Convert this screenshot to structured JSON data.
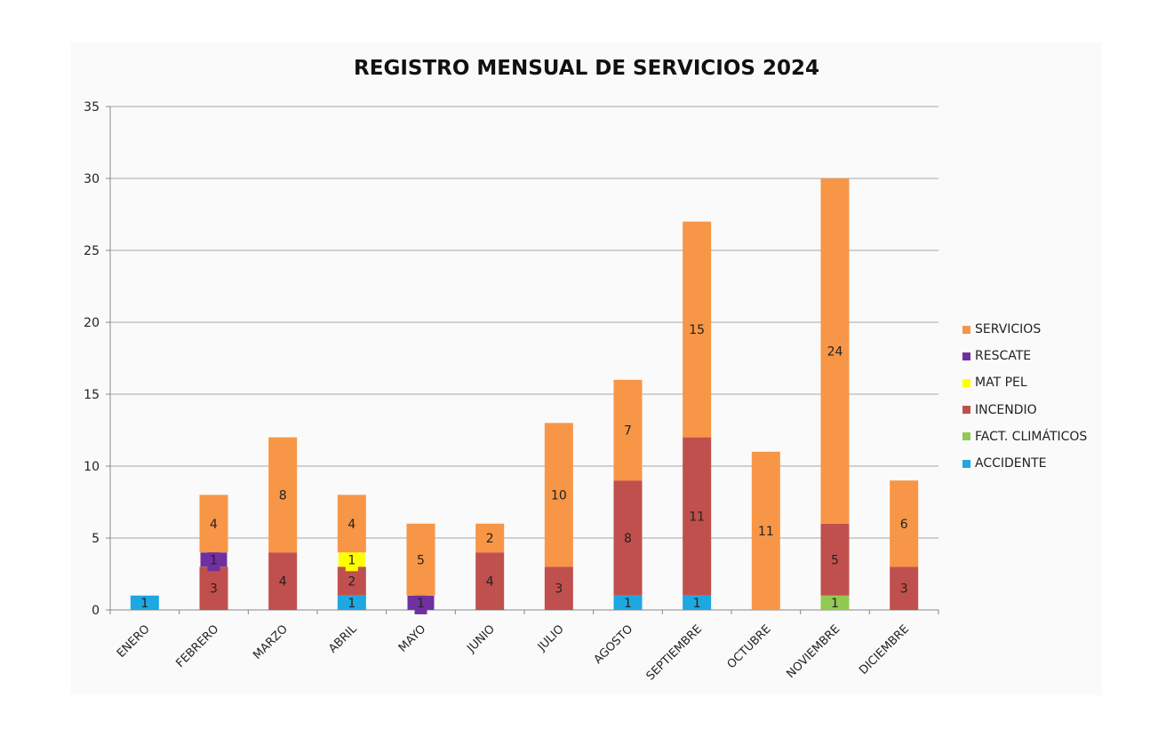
{
  "chart_data": {
    "type": "bar",
    "stacked": true,
    "title": "REGISTRO MENSUAL DE SERVICIOS 2024",
    "xlabel": "",
    "ylabel": "",
    "ylim": [
      0,
      35
    ],
    "yticks": [
      "0",
      "5",
      "10",
      "15",
      "20",
      "25",
      "30",
      "35"
    ],
    "grid": true,
    "legend_position": "right",
    "categories": [
      "ENERO",
      "FEBRERO",
      "MARZO",
      "ABRIL",
      "MAYO",
      "JUNIO",
      "JULIO",
      "AGOSTO",
      "SEPTIEMBRE",
      "OCTUBRE",
      "NOVIEMBRE",
      "DICIEMBRE"
    ],
    "series": [
      {
        "name": "ACCIDENTE",
        "color": "#1ea7e1",
        "values": [
          1,
          0,
          0,
          1,
          0,
          0,
          0,
          1,
          1,
          0,
          0,
          0
        ]
      },
      {
        "name": "FACT. CLIMÁTICOS",
        "color": "#92c950",
        "values": [
          0,
          0,
          0,
          0,
          0,
          0,
          0,
          0,
          0,
          0,
          1,
          0
        ]
      },
      {
        "name": "INCENDIO",
        "color": "#c0504d",
        "values": [
          0,
          3,
          4,
          2,
          0,
          4,
          3,
          8,
          11,
          0,
          5,
          3
        ]
      },
      {
        "name": "MAT PEL",
        "color": "#ffff00",
        "values": [
          0,
          0,
          0,
          1,
          0,
          0,
          0,
          0,
          0,
          0,
          0,
          0
        ]
      },
      {
        "name": "RESCATE",
        "color": "#7030a0",
        "values": [
          0,
          1,
          0,
          0,
          1,
          0,
          0,
          0,
          0,
          0,
          0,
          0
        ]
      },
      {
        "name": "SERVICIOS",
        "color": "#f79646",
        "values": [
          0,
          4,
          8,
          4,
          5,
          2,
          10,
          7,
          15,
          11,
          24,
          6
        ]
      }
    ],
    "legend_order": [
      "SERVICIOS",
      "RESCATE",
      "MAT PEL",
      "INCENDIO",
      "FACT. CLIMÁTICOS",
      "ACCIDENTE"
    ]
  }
}
